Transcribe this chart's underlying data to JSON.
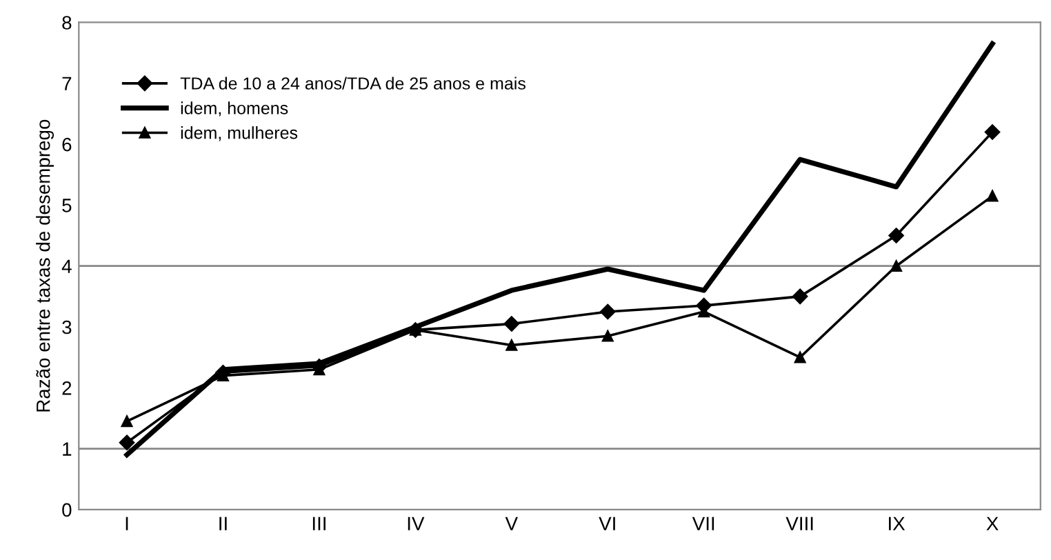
{
  "chart_data": {
    "type": "line",
    "ylabel": "Razão entre taxas de desemprego",
    "categories": [
      "I",
      "II",
      "III",
      "IV",
      "V",
      "VI",
      "VII",
      "VIII",
      "IX",
      "X"
    ],
    "series": [
      {
        "name": "TDA de 10 a 24 anos/TDA de 25 anos e mais",
        "color": "#000000",
        "marker": "diamond",
        "values": [
          1.1,
          2.25,
          2.35,
          2.95,
          3.05,
          3.25,
          3.35,
          3.5,
          4.5,
          6.2
        ]
      },
      {
        "name": "idem, homens",
        "color": "#000000",
        "marker": "none",
        "values": [
          0.9,
          2.3,
          2.4,
          3.0,
          3.6,
          3.95,
          3.6,
          5.75,
          5.3,
          7.65
        ]
      },
      {
        "name": "idem, mulheres",
        "color": "#000000",
        "marker": "triangle",
        "values": [
          1.45,
          2.2,
          2.3,
          2.95,
          2.7,
          2.85,
          3.25,
          2.5,
          4.0,
          5.15
        ]
      }
    ],
    "ylim": [
      0,
      8
    ],
    "yticks": [
      0,
      1,
      2,
      3,
      4,
      5,
      6,
      7,
      8
    ],
    "ref_lines": [
      {
        "axis": "y",
        "value": 1,
        "label": null,
        "color": "#888888"
      },
      {
        "axis": "y",
        "value": 4,
        "label": null,
        "color": "#888888"
      }
    ],
    "grid": false,
    "legend": "top left",
    "line_style": "solid"
  }
}
